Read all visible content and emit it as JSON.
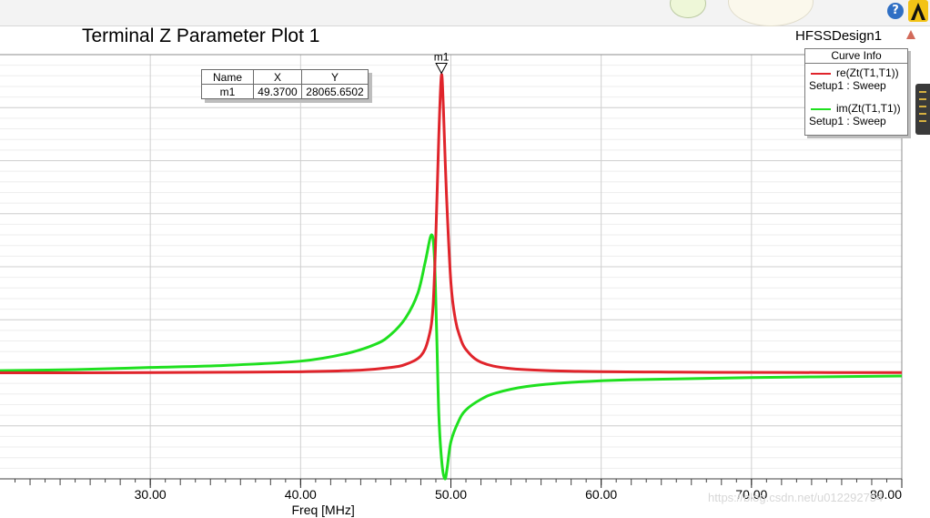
{
  "app": {
    "help_icon": "question-mark-icon",
    "help_symbol": "?",
    "logo_icon": "ansys-logo-icon",
    "design_icon": "design-warning-icon",
    "side_widget": "vertical-toolbar-handle"
  },
  "chart_data": {
    "type": "line",
    "title": "Terminal Z Parameter Plot 1",
    "design_name": "HFSSDesign1",
    "xlabel": "Freq [MHz]",
    "ylabel": "",
    "xlim": [
      20,
      80
    ],
    "ylim": [
      -10000,
      30000
    ],
    "x_ticks": [
      30,
      40,
      50,
      60,
      70,
      80
    ],
    "x_tick_labels": [
      "30.00",
      "40.00",
      "50.00",
      "60.00",
      "70.00",
      "80.00"
    ],
    "grid": true,
    "legend": {
      "title": "Curve Info",
      "placement": "top-right",
      "entries": [
        {
          "name": "re(Zt(T1,T1))",
          "sub": "Setup1 : Sweep",
          "color": "#e0242b"
        },
        {
          "name": "im(Zt(T1,T1))",
          "sub": "Setup1 : Sweep",
          "color": "#1fe01f"
        }
      ]
    },
    "series": [
      {
        "name": "re(Zt(T1,T1))",
        "color": "#e0242b",
        "x": [
          20,
          25,
          30,
          35,
          40,
          44,
          46,
          47,
          48,
          48.5,
          48.8,
          49,
          49.2,
          49.37,
          49.5,
          49.7,
          50,
          50.3,
          50.6,
          51,
          52,
          54,
          58,
          65,
          72,
          80
        ],
        "y": [
          0,
          0,
          20,
          50,
          100,
          250,
          500,
          800,
          1600,
          3200,
          6000,
          13000,
          22500,
          28065,
          25000,
          17000,
          8500,
          5000,
          3400,
          2200,
          1000,
          400,
          150,
          60,
          30,
          20
        ]
      },
      {
        "name": "im(Zt(T1,T1))",
        "color": "#1fe01f",
        "x": [
          20,
          25,
          30,
          35,
          40,
          43,
          45,
          46,
          47,
          47.8,
          48.3,
          48.7,
          48.9,
          49.05,
          49.2,
          49.4,
          49.6,
          49.75,
          50,
          50.5,
          51,
          52,
          53,
          55,
          58,
          62,
          70,
          80
        ],
        "y": [
          200,
          300,
          500,
          700,
          1100,
          1800,
          2700,
          3600,
          5200,
          7500,
          10500,
          13000,
          11000,
          4000,
          -4000,
          -8500,
          -10000,
          -9000,
          -6500,
          -4600,
          -3500,
          -2500,
          -1900,
          -1300,
          -900,
          -650,
          -450,
          -300
        ]
      }
    ],
    "marker": {
      "label": "m1",
      "header_name": "Name",
      "header_x": "X",
      "header_y": "Y",
      "row_name": "m1",
      "row_x": "49.3700",
      "row_y": "28065.6502",
      "x": 49.37,
      "y": 28065.65
    }
  },
  "watermark": "https://blog.csdn.net/u012292754"
}
